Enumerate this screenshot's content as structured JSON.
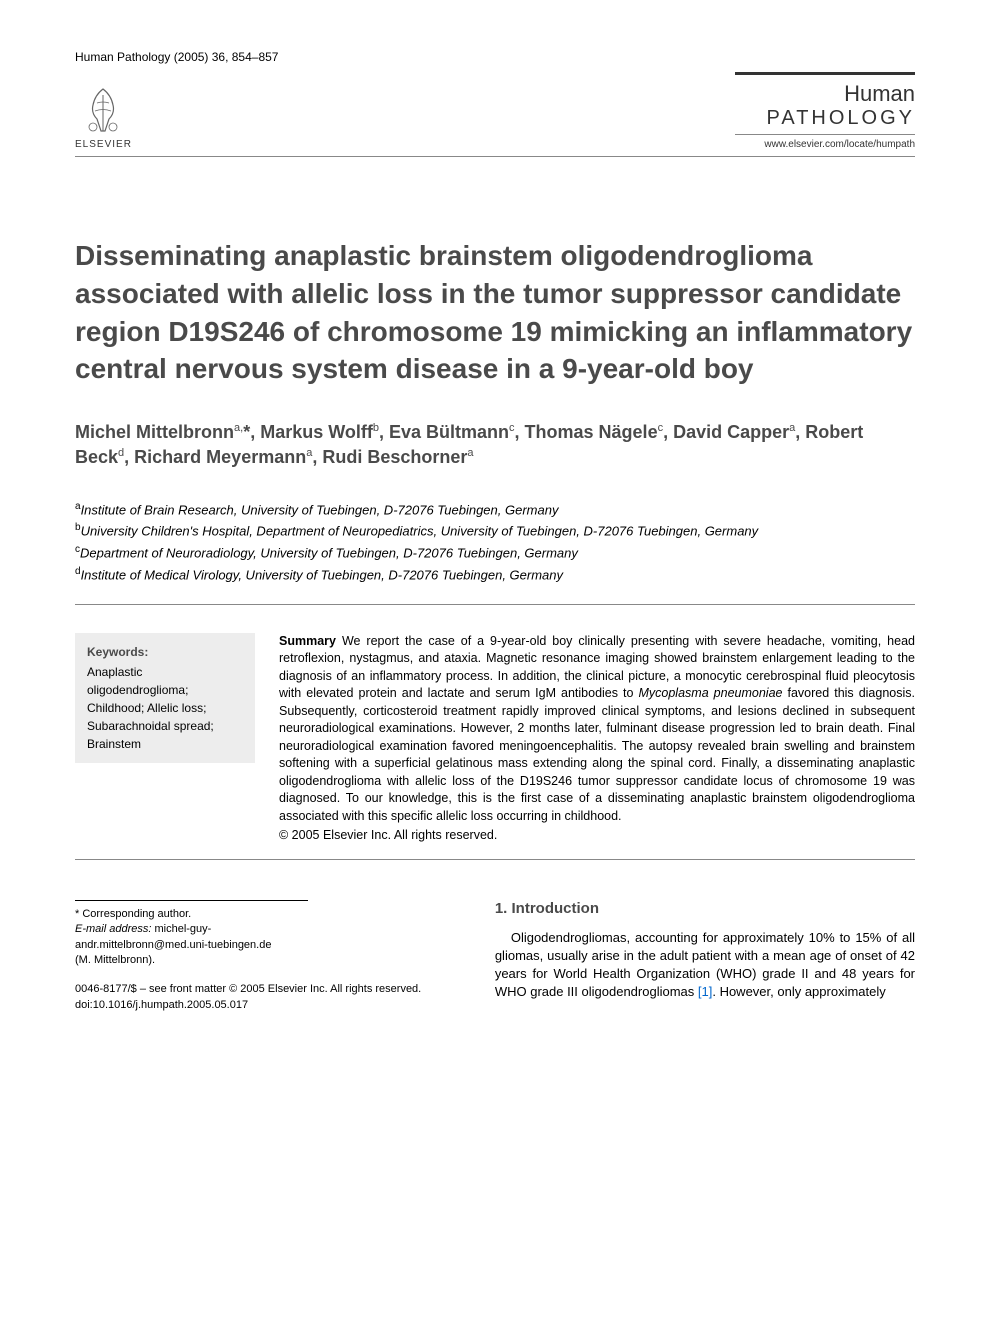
{
  "header": {
    "citation": "Human Pathology (2005) 36, 854–857",
    "publisher_name": "ELSEVIER",
    "journal_name_line1": "Human",
    "journal_name_line2": "PATHOLOGY",
    "journal_url": "www.elsevier.com/locate/humpath"
  },
  "title": "Disseminating anaplastic brainstem oligodendroglioma associated with allelic loss in the tumor suppressor candidate region D19S246 of chromosome 19 mimicking an inflammatory central nervous system disease in a 9-year-old boy",
  "authors_html": "Michel Mittelbronn<sup>a,</sup>*, Markus Wolff<sup>b</sup>, Eva Bültmann<sup>c</sup>, Thomas Nägele<sup>c</sup>, David Capper<sup>a</sup>, Robert Beck<sup>d</sup>, Richard Meyermann<sup>a</sup>, Rudi Beschorner<sup>a</sup>",
  "affiliations": [
    {
      "sup": "a",
      "text": "Institute of Brain Research, University of Tuebingen, D-72076 Tuebingen, Germany"
    },
    {
      "sup": "b",
      "text": "University Children's Hospital, Department of Neuropediatrics, University of Tuebingen, D-72076 Tuebingen, Germany"
    },
    {
      "sup": "c",
      "text": "Department of Neuroradiology, University of Tuebingen, D-72076 Tuebingen, Germany"
    },
    {
      "sup": "d",
      "text": "Institute of Medical Virology, University of Tuebingen, D-72076 Tuebingen, Germany"
    }
  ],
  "keywords": {
    "heading": "Keywords:",
    "items": "Anaplastic oligodendroglioma; Childhood; Allelic loss; Subarachnoidal spread; Brainstem"
  },
  "summary": {
    "heading": "Summary",
    "text": "We report the case of a 9-year-old boy clinically presenting with severe headache, vomiting, head retroflexion, nystagmus, and ataxia. Magnetic resonance imaging showed brainstem enlargement leading to the diagnosis of an inflammatory process. In addition, the clinical picture, a monocytic cerebrospinal fluid pleocytosis with elevated protein and lactate and serum IgM antibodies to Mycoplasma pneumoniae favored this diagnosis. Subsequently, corticosteroid treatment rapidly improved clinical symptoms, and lesions declined in subsequent neuroradiological examinations. However, 2 months later, fulminant disease progression led to brain death. Final neuroradiological examination favored meningoencephalitis. The autopsy revealed brain swelling and brainstem softening with a superficial gelatinous mass extending along the spinal cord. Finally, a disseminating anaplastic oligodendroglioma with allelic loss of the D19S246 tumor suppressor candidate locus of chromosome 19 was diagnosed. To our knowledge, this is the first case of a disseminating anaplastic brainstem oligodendroglioma associated with this specific allelic loss occurring in childhood.",
    "copyright": "© 2005 Elsevier Inc. All rights reserved."
  },
  "section1": {
    "heading": "1. Introduction",
    "body": "Oligodendrogliomas, accounting for approximately 10% to 15% of all gliomas, usually arise in the adult patient with a mean age of onset of 42 years for World Health Organization (WHO) grade II and 48 years for WHO grade III oligodendrogliomas [1]. However, only approximately",
    "ref": "[1]"
  },
  "footnotes": {
    "corresponding": "* Corresponding author.",
    "email_label": "E-mail address:",
    "email": "michel-guy-andr.mittelbronn@med.uni-tuebingen.de",
    "email_author": "(M. Mittelbronn).",
    "front_matter": "0046-8177/$ – see front matter © 2005 Elsevier Inc. All rights reserved.",
    "doi": "doi:10.1016/j.humpath.2005.05.017"
  },
  "colors": {
    "heading": "#4a4a4a",
    "text": "#000000",
    "keywords_bg": "#ededed",
    "rule": "#888888",
    "link": "#0066cc"
  },
  "typography": {
    "title_fontsize": 28,
    "authors_fontsize": 18,
    "body_fontsize": 13,
    "summary_fontsize": 12.5,
    "footnote_fontsize": 11
  }
}
